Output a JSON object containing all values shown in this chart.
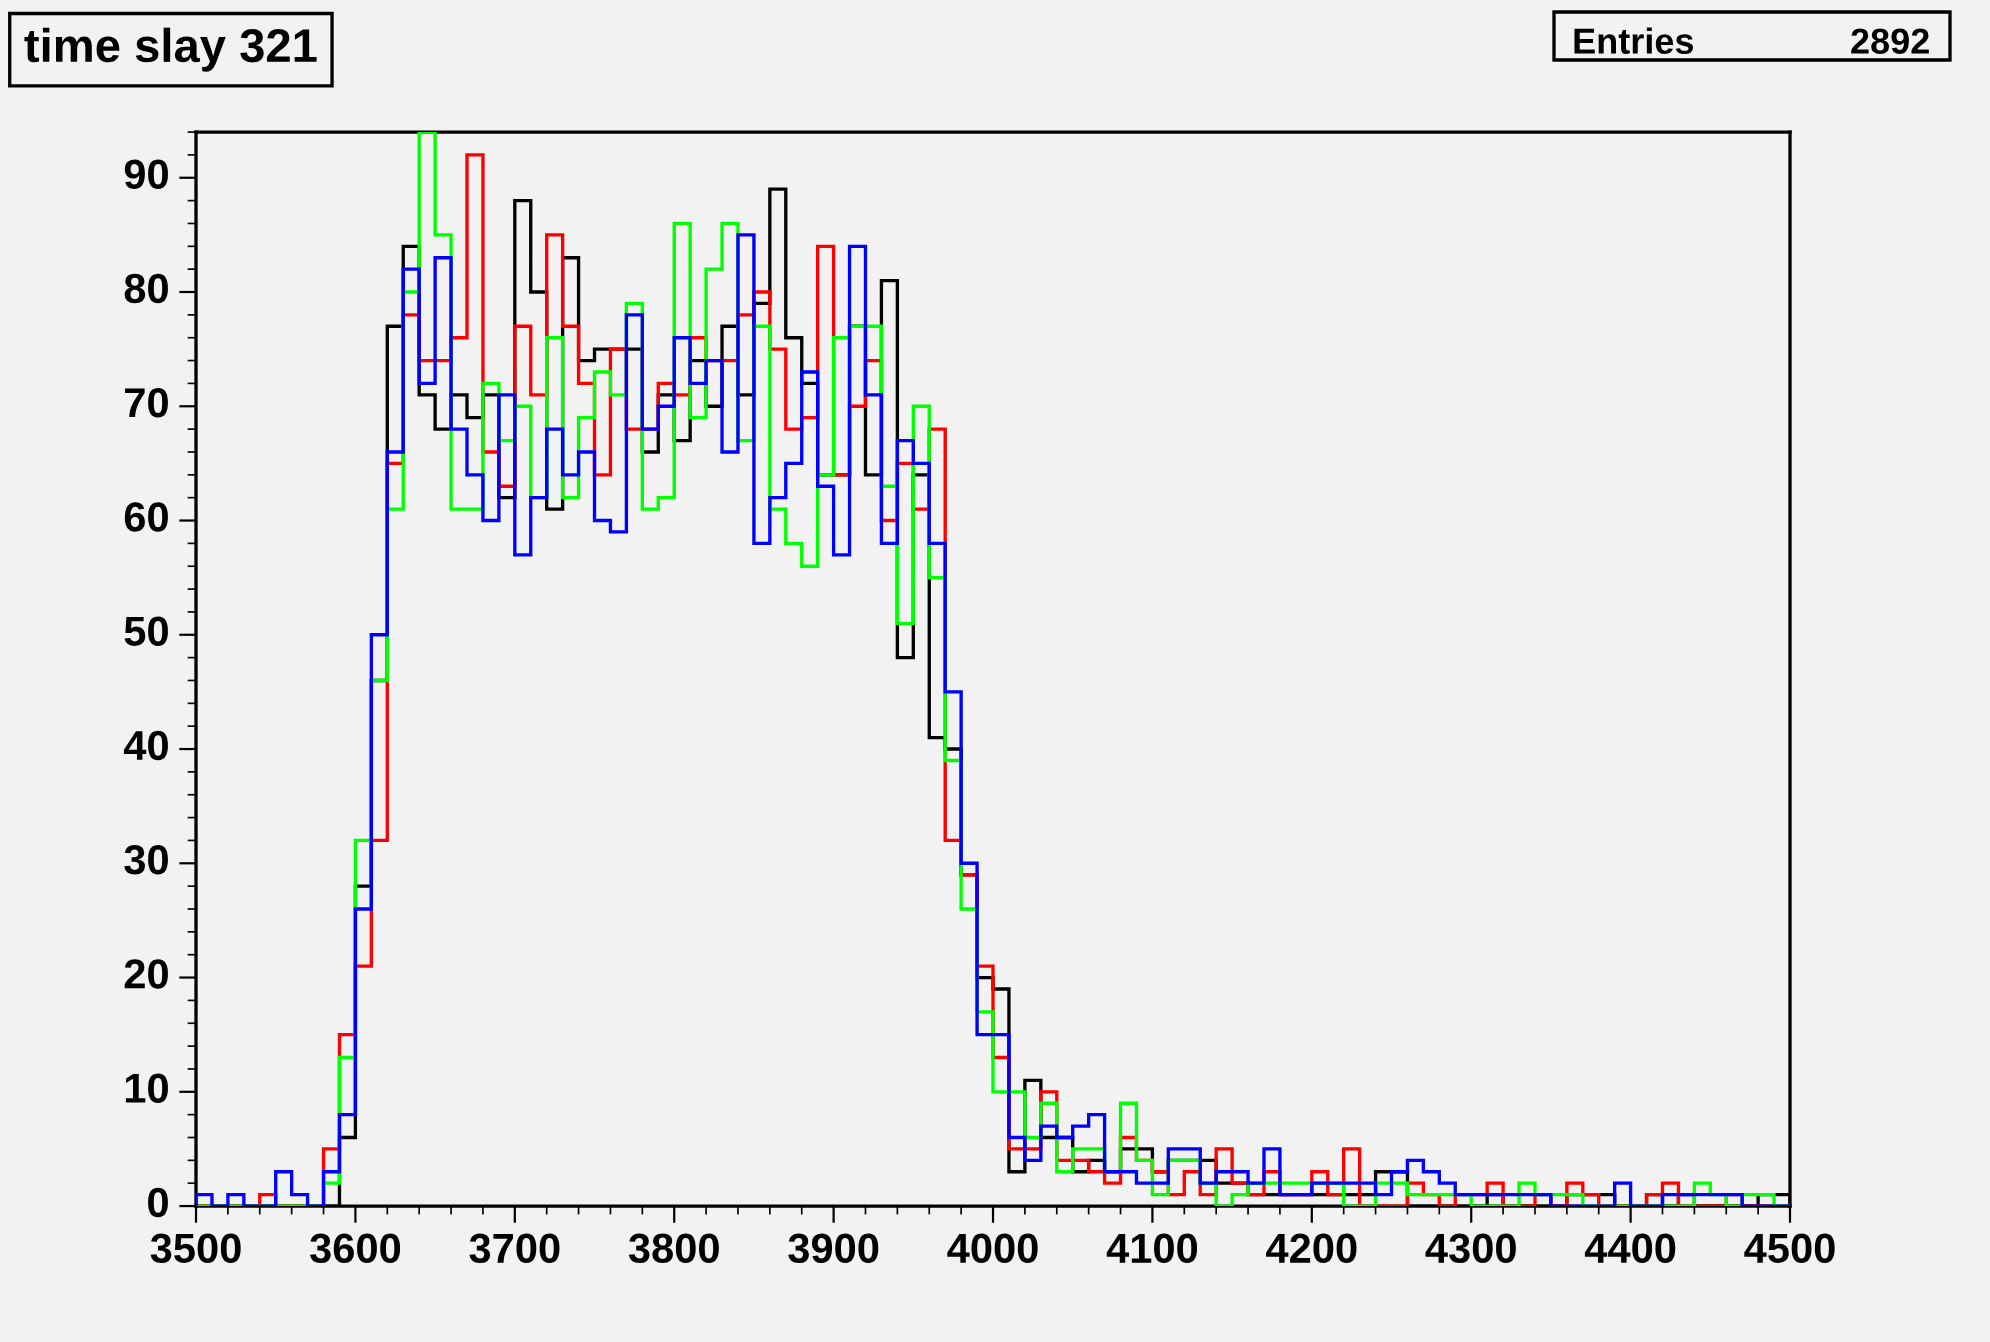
{
  "chart_data": {
    "type": "histogram",
    "title": "time slay 321",
    "annotations": [
      "Entries",
      "2892"
    ],
    "bins": [
      3500,
      3510,
      3520,
      3530,
      3540,
      3550,
      3560,
      3570,
      3580,
      3590,
      3600,
      3610,
      3620,
      3630,
      3640,
      3650,
      3660,
      3670,
      3680,
      3690,
      3700,
      3710,
      3720,
      3730,
      3740,
      3750,
      3760,
      3770,
      3780,
      3790,
      3800,
      3810,
      3820,
      3830,
      3840,
      3850,
      3860,
      3870,
      3880,
      3890,
      3900,
      3910,
      3920,
      3930,
      3940,
      3950,
      3960,
      3970,
      3980,
      3990,
      4000,
      4010,
      4020,
      4030,
      4040,
      4050,
      4060,
      4070,
      4080,
      4090,
      4100,
      4110,
      4120,
      4130,
      4140,
      4150,
      4160,
      4170,
      4180,
      4190,
      4200,
      4210,
      4220,
      4230,
      4240,
      4250,
      4260,
      4270,
      4280,
      4290,
      4300,
      4310,
      4320,
      4330,
      4340,
      4350,
      4360,
      4370,
      4380,
      4390,
      4400,
      4410,
      4420,
      4430,
      4440,
      4450,
      4460,
      4470,
      4480,
      4490,
      4500
    ],
    "series": [
      {
        "color": "#000000",
        "values": [
          0,
          0,
          0,
          0,
          0,
          0,
          0,
          0,
          0,
          6,
          28,
          46,
          77,
          84,
          71,
          68,
          71,
          69,
          71,
          62,
          88,
          80,
          61,
          83,
          74,
          75,
          75,
          75,
          66,
          71,
          67,
          74,
          70,
          77,
          71,
          79,
          89,
          76,
          72,
          64,
          64,
          77,
          64,
          81,
          48,
          64,
          41,
          40,
          29,
          20,
          19,
          3,
          11,
          6,
          6,
          3,
          4,
          3,
          5,
          5,
          3,
          4,
          4,
          4,
          2,
          2,
          1,
          1,
          1,
          1,
          1,
          1,
          1,
          1,
          3,
          3,
          0,
          0,
          0,
          0,
          0,
          1,
          0,
          0,
          0,
          0,
          1,
          1,
          1,
          0,
          0,
          1,
          0,
          1,
          0,
          0,
          0,
          0,
          1,
          1
        ]
      },
      {
        "color": "#ff0000",
        "values": [
          0,
          0,
          0,
          0,
          1,
          0,
          0,
          0,
          5,
          15,
          21,
          32,
          65,
          78,
          74,
          74,
          76,
          92,
          66,
          63,
          77,
          71,
          85,
          77,
          72,
          64,
          75,
          68,
          68,
          72,
          71,
          76,
          74,
          74,
          78,
          80,
          75,
          68,
          69,
          84,
          64,
          70,
          74,
          60,
          65,
          61,
          68,
          32,
          29,
          21,
          13,
          5,
          5,
          10,
          4,
          4,
          3,
          2,
          6,
          4,
          3,
          1,
          3,
          1,
          5,
          2,
          1,
          3,
          1,
          1,
          3,
          1,
          5,
          0,
          0,
          0,
          2,
          1,
          0,
          1,
          1,
          2,
          0,
          0,
          1,
          0,
          2,
          1,
          0,
          0,
          0,
          1,
          2,
          0,
          0,
          0,
          1,
          0,
          0,
          0
        ]
      },
      {
        "color": "#00ff00",
        "values": [
          0,
          0,
          0,
          0,
          0,
          0,
          0,
          0,
          2,
          13,
          32,
          46,
          61,
          80,
          94,
          85,
          61,
          61,
          72,
          67,
          70,
          62,
          76,
          62,
          69,
          73,
          71,
          79,
          61,
          62,
          86,
          69,
          82,
          86,
          67,
          77,
          61,
          58,
          56,
          64,
          76,
          77,
          77,
          63,
          51,
          70,
          55,
          39,
          26,
          17,
          10,
          10,
          6,
          9,
          3,
          5,
          5,
          3,
          9,
          4,
          1,
          4,
          4,
          2,
          0,
          1,
          2,
          2,
          2,
          2,
          2,
          2,
          0,
          0,
          2,
          2,
          1,
          1,
          1,
          1,
          0,
          0,
          0,
          2,
          1,
          1,
          1,
          0,
          0,
          0,
          0,
          0,
          0,
          0,
          2,
          1,
          0,
          1,
          1,
          0
        ]
      },
      {
        "color": "#0000ff",
        "values": [
          1,
          0,
          1,
          0,
          0,
          3,
          1,
          0,
          3,
          8,
          26,
          50,
          66,
          82,
          72,
          83,
          68,
          64,
          60,
          71,
          57,
          62,
          68,
          64,
          66,
          60,
          59,
          78,
          68,
          70,
          76,
          72,
          74,
          66,
          85,
          58,
          62,
          65,
          73,
          63,
          57,
          84,
          71,
          58,
          67,
          65,
          58,
          45,
          30,
          15,
          15,
          6,
          4,
          7,
          6,
          7,
          8,
          3,
          3,
          2,
          2,
          5,
          5,
          2,
          3,
          3,
          2,
          5,
          1,
          1,
          2,
          2,
          2,
          2,
          1,
          3,
          4,
          3,
          2,
          1,
          1,
          1,
          1,
          1,
          1,
          0,
          0,
          0,
          0,
          2,
          0,
          0,
          1,
          1,
          1,
          1,
          1,
          0,
          0,
          0
        ]
      }
    ],
    "xlim": [
      3500,
      4500
    ],
    "xticks": [
      3500,
      3600,
      3700,
      3800,
      3900,
      4000,
      4100,
      4200,
      4300,
      4400,
      4500
    ],
    "ylim": [
      0,
      94
    ],
    "yticks": [
      0,
      10,
      20,
      30,
      40,
      50,
      60,
      70,
      80,
      90
    ],
    "grid": false
  }
}
